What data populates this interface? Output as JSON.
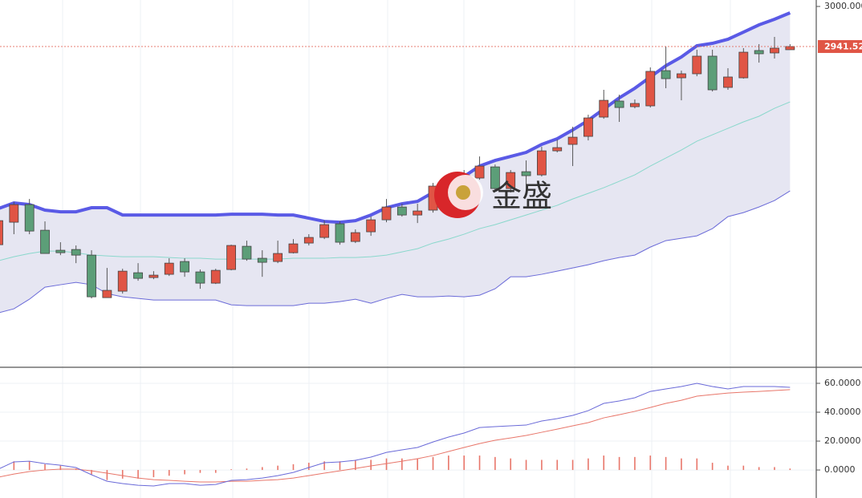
{
  "chart_data": {
    "type": "candlestick",
    "watermark": "金盛",
    "ylim": [
      2473.7,
      3009.4
    ],
    "yticks": [
      {
        "value": 3000,
        "label": "3000.000"
      }
    ],
    "current_price": {
      "value": 2941.52,
      "label": "2941.520"
    },
    "up_color": "#e05545",
    "down_color": "#5c9e78",
    "candles": {
      "open": [
        2652.5,
        2685.3,
        2711.0,
        2673.6,
        2644.4,
        2645.5,
        2637.3,
        2575.3,
        2584.7,
        2611.6,
        2604.6,
        2609.3,
        2628.0,
        2612.8,
        2596.4,
        2616.3,
        2650.2,
        2632.7,
        2628.0,
        2640.8,
        2654.9,
        2663.1,
        2683.0,
        2657.2,
        2671.3,
        2688.8,
        2707.5,
        2695.8,
        2702.9,
        2728.6,
        2740.3,
        2749.7,
        2766.0,
        2734.4,
        2759.0,
        2754.3,
        2789.4,
        2798.8,
        2810.5,
        2838.6,
        2862.0,
        2853.8,
        2855.0,
        2906.4,
        2895.9,
        2901.8,
        2927.5,
        2881.9,
        2895.9,
        2935.7,
        2932.2,
        2936.9
      ],
      "high": [
        2702.9,
        2714.6,
        2719.2,
        2686.5,
        2656.1,
        2651.4,
        2644.4,
        2618.6,
        2617.4,
        2625.6,
        2613.9,
        2632.7,
        2632.7,
        2616.3,
        2617.4,
        2652.5,
        2658.4,
        2644.4,
        2658.4,
        2660.7,
        2667.8,
        2687.6,
        2686.5,
        2674.8,
        2693.5,
        2719.2,
        2712.2,
        2712.2,
        2742.6,
        2752.0,
        2761.4,
        2781.2,
        2769.5,
        2761.4,
        2775.4,
        2795.3,
        2805.8,
        2824.5,
        2842.1,
        2878.4,
        2871.3,
        2864.3,
        2911.1,
        2941.5,
        2906.4,
        2936.9,
        2936.9,
        2909.9,
        2939.2,
        2945.0,
        2955.6,
        2945.0
      ],
      "low": [
        2646.7,
        2667.8,
        2667.8,
        2639.7,
        2637.3,
        2625.6,
        2574.2,
        2575.3,
        2581.2,
        2599.9,
        2602.2,
        2606.9,
        2605.7,
        2588.2,
        2595.2,
        2615.1,
        2629.1,
        2605.7,
        2625.6,
        2639.7,
        2651.4,
        2660.7,
        2652.5,
        2654.9,
        2665.4,
        2685.3,
        2693.5,
        2684.1,
        2699.3,
        2722.7,
        2738.0,
        2747.3,
        2730.9,
        2728.6,
        2740.3,
        2752.0,
        2787.1,
        2767.2,
        2804.6,
        2836.2,
        2831.6,
        2851.4,
        2852.6,
        2880.7,
        2863.1,
        2898.2,
        2876.0,
        2878.4,
        2894.7,
        2918.1,
        2924.0,
        2936.9
      ],
      "close": [
        2687.6,
        2711.0,
        2672.4,
        2639.7,
        2640.8,
        2637.3,
        2576.5,
        2585.9,
        2613.9,
        2603.4,
        2608.1,
        2625.6,
        2612.8,
        2596.4,
        2615.1,
        2651.4,
        2631.5,
        2626.8,
        2639.7,
        2653.7,
        2663.1,
        2681.8,
        2656.1,
        2670.1,
        2688.8,
        2707.5,
        2695.8,
        2701.7,
        2738.0,
        2742.6,
        2754.3,
        2767.2,
        2734.4,
        2757.8,
        2753.2,
        2789.4,
        2794.1,
        2809.3,
        2837.4,
        2863.1,
        2852.6,
        2858.5,
        2905.3,
        2894.7,
        2901.8,
        2927.5,
        2878.4,
        2897.1,
        2933.3,
        2931.0,
        2939.2,
        2941.52
      ]
    },
    "bands": {
      "fill": "#e6e6f2",
      "upper_color": "#5a5ae6",
      "middle_color": "#8ad8cc",
      "lower_color": "#6a6ad8",
      "upper": [
        2705.2,
        2713.4,
        2711.0,
        2702.9,
        2700.5,
        2700.5,
        2706.4,
        2706.4,
        2695.8,
        2695.8,
        2695.8,
        2695.8,
        2695.8,
        2695.8,
        2695.8,
        2697.0,
        2697.0,
        2697.0,
        2695.8,
        2695.8,
        2691.2,
        2686.5,
        2685.3,
        2687.6,
        2695.8,
        2706.4,
        2712.2,
        2715.7,
        2728.6,
        2738.0,
        2752.0,
        2767.2,
        2775.4,
        2781.2,
        2787.1,
        2798.8,
        2807.0,
        2819.9,
        2833.9,
        2850.3,
        2866.7,
        2880.7,
        2897.1,
        2913.5,
        2926.3,
        2942.7,
        2946.2,
        2952.1,
        2962.6,
        2973.1,
        2981.3,
        2990.7
      ],
      "middle": [
        2629.1,
        2635.0,
        2639.7,
        2643.2,
        2643.2,
        2640.8,
        2637.3,
        2636.2,
        2635.0,
        2635.0,
        2635.0,
        2633.8,
        2632.7,
        2632.7,
        2631.5,
        2631.5,
        2631.5,
        2631.5,
        2631.5,
        2632.7,
        2632.7,
        2632.7,
        2633.8,
        2633.8,
        2635.0,
        2637.3,
        2642.0,
        2646.7,
        2654.9,
        2660.7,
        2667.8,
        2676.0,
        2681.8,
        2688.8,
        2695.8,
        2702.9,
        2709.9,
        2719.2,
        2727.4,
        2735.6,
        2745.0,
        2754.3,
        2767.2,
        2778.9,
        2790.6,
        2803.5,
        2812.8,
        2822.2,
        2831.6,
        2839.8,
        2851.4,
        2860.8
      ],
      "lower": [
        2553.1,
        2559.0,
        2573.0,
        2590.5,
        2594.1,
        2597.6,
        2594.1,
        2581.2,
        2576.5,
        2574.2,
        2571.8,
        2571.8,
        2571.8,
        2571.8,
        2571.8,
        2564.8,
        2563.6,
        2563.6,
        2563.6,
        2563.6,
        2567.1,
        2567.1,
        2569.5,
        2573.0,
        2567.1,
        2574.2,
        2580.0,
        2576.5,
        2576.5,
        2577.7,
        2576.5,
        2578.8,
        2588.2,
        2605.7,
        2605.7,
        2609.3,
        2613.9,
        2618.6,
        2623.3,
        2629.1,
        2633.8,
        2637.3,
        2649.0,
        2658.4,
        2661.9,
        2665.4,
        2675.9,
        2693.5,
        2699.3,
        2707.5,
        2716.9,
        2730.9
      ]
    },
    "macd": {
      "ylim": [
        -19.4,
        70
      ],
      "yticks": [
        {
          "value": 60,
          "label": "60.0000"
        },
        {
          "value": 40,
          "label": "40.0000"
        },
        {
          "value": 20,
          "label": "20.0000"
        },
        {
          "value": 0,
          "label": "0.0000"
        }
      ],
      "dif_color": "#6a6ad8",
      "dea_color": "#e8766a",
      "hist_color": "#e8766a",
      "dif": [
        0.6,
        5.6,
        6.1,
        4.4,
        3.3,
        1.7,
        -3.3,
        -7.8,
        -9.4,
        -10.6,
        -11.1,
        -9.4,
        -9.4,
        -10.6,
        -10.0,
        -7.2,
        -6.7,
        -5.6,
        -3.9,
        -1.7,
        1.7,
        5.0,
        5.6,
        6.7,
        8.9,
        12.2,
        13.9,
        15.6,
        19.4,
        22.8,
        25.6,
        29.4,
        30.0,
        30.6,
        31.1,
        33.9,
        35.6,
        37.8,
        41.1,
        46.1,
        47.8,
        50.0,
        54.4,
        56.1,
        57.8,
        60.0,
        57.8,
        56.1,
        57.8,
        57.8,
        57.8,
        57.2
      ],
      "dea": [
        -5.0,
        -2.8,
        -1.1,
        0,
        0.6,
        0.6,
        -0.6,
        -2.2,
        -3.9,
        -5.6,
        -6.7,
        -7.2,
        -7.8,
        -8.3,
        -8.3,
        -7.8,
        -7.8,
        -7.2,
        -6.7,
        -5.6,
        -3.9,
        -2.2,
        -0.6,
        1.1,
        2.8,
        4.4,
        6.1,
        7.8,
        10.0,
        12.8,
        15.6,
        18.3,
        20.6,
        22.2,
        23.9,
        26.1,
        28.3,
        30.6,
        32.8,
        36.1,
        38.3,
        40.6,
        43.3,
        46.1,
        48.3,
        51.1,
        52.2,
        53.3,
        53.9,
        54.4,
        55.0,
        55.6
      ],
      "hist": [
        1,
        6,
        6,
        4,
        3,
        1,
        -3,
        -7,
        -6,
        -6,
        -5,
        -4,
        -3,
        -2,
        -2,
        0.5,
        1,
        2,
        3,
        4,
        5,
        6,
        6,
        7,
        7,
        8,
        8,
        8,
        9,
        10,
        10,
        10,
        9,
        8,
        7,
        7,
        7,
        7,
        8,
        10,
        9,
        9,
        10,
        9,
        8,
        8,
        5,
        3,
        3,
        2,
        2,
        1
      ]
    }
  }
}
